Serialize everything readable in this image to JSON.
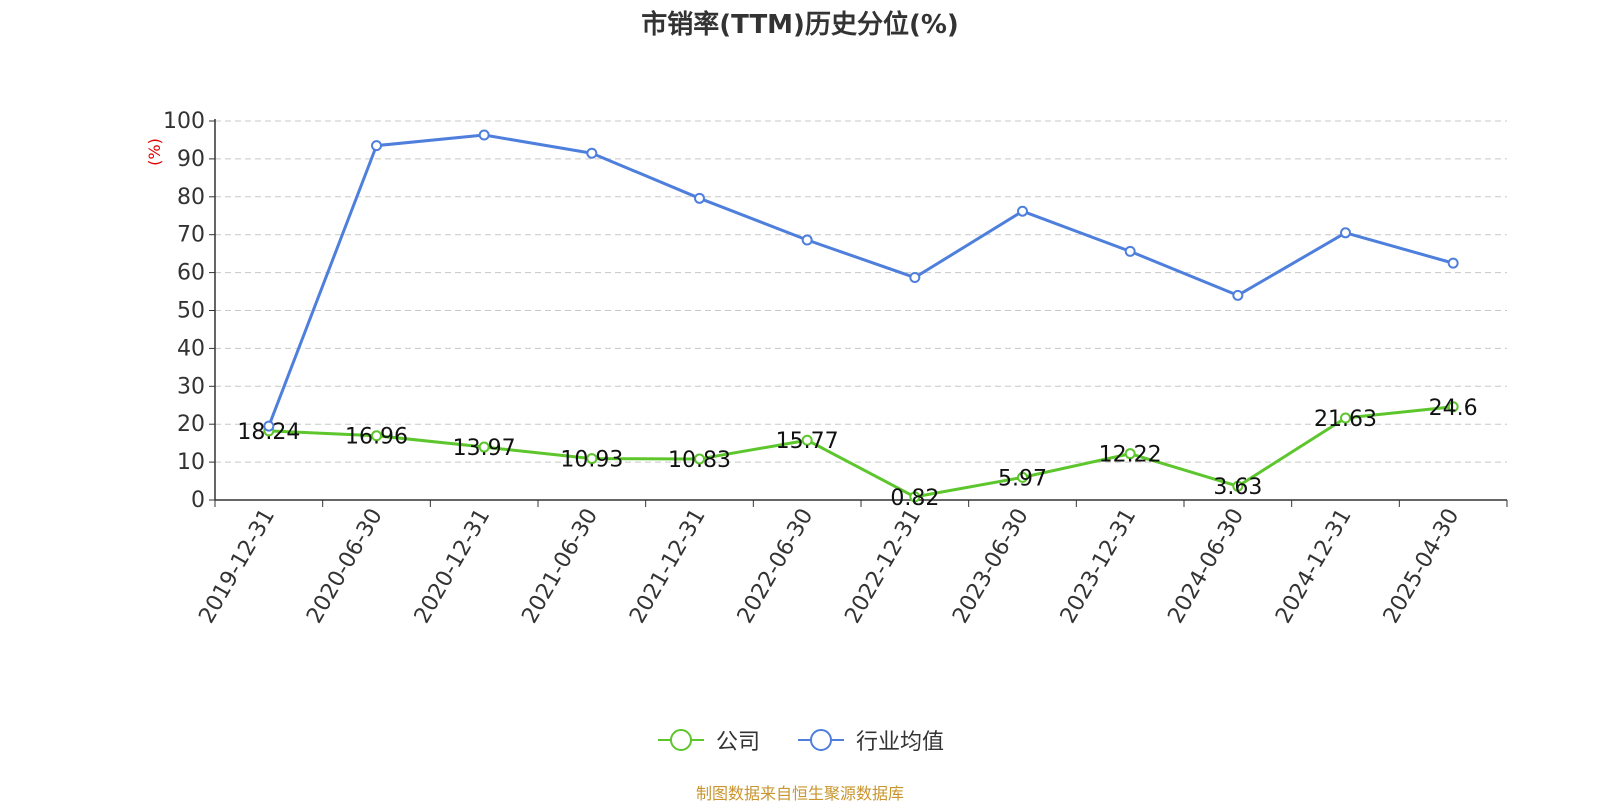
{
  "chart_data": {
    "type": "line",
    "title": "市销率(TTM)历史分位(%)",
    "ylabel": "(%)",
    "ylim": [
      0,
      100
    ],
    "yticks": [
      0,
      10,
      20,
      30,
      40,
      50,
      60,
      70,
      80,
      90,
      100
    ],
    "categories": [
      "2019-12-31",
      "2020-06-30",
      "2020-12-31",
      "2021-06-30",
      "2021-12-31",
      "2022-06-30",
      "2022-12-31",
      "2023-06-30",
      "2023-12-31",
      "2024-06-30",
      "2024-12-31",
      "2025-04-30"
    ],
    "grid": true,
    "legend_position": "bottom",
    "series": [
      {
        "name": "公司",
        "color": "#5cc62c",
        "values": [
          18.24,
          16.96,
          13.97,
          10.93,
          10.83,
          15.77,
          0.82,
          5.97,
          12.22,
          3.63,
          21.63,
          24.6
        ],
        "labels": [
          "18.24",
          "16.96",
          "13.97",
          "10.93",
          "10.83",
          "15.77",
          "0.82",
          "5.97",
          "12.22",
          "3.63",
          "21.63",
          "24.6"
        ]
      },
      {
        "name": "行业均值",
        "color": "#4e7fdc",
        "values": [
          19.5,
          93.5,
          96.3,
          91.5,
          79.6,
          68.6,
          58.7,
          76.2,
          65.6,
          54.0,
          70.5,
          62.5
        ]
      }
    ]
  },
  "legend": {
    "company_label": "公司",
    "industry_label": "行业均值"
  },
  "source": "制图数据来自恒生聚源数据库"
}
